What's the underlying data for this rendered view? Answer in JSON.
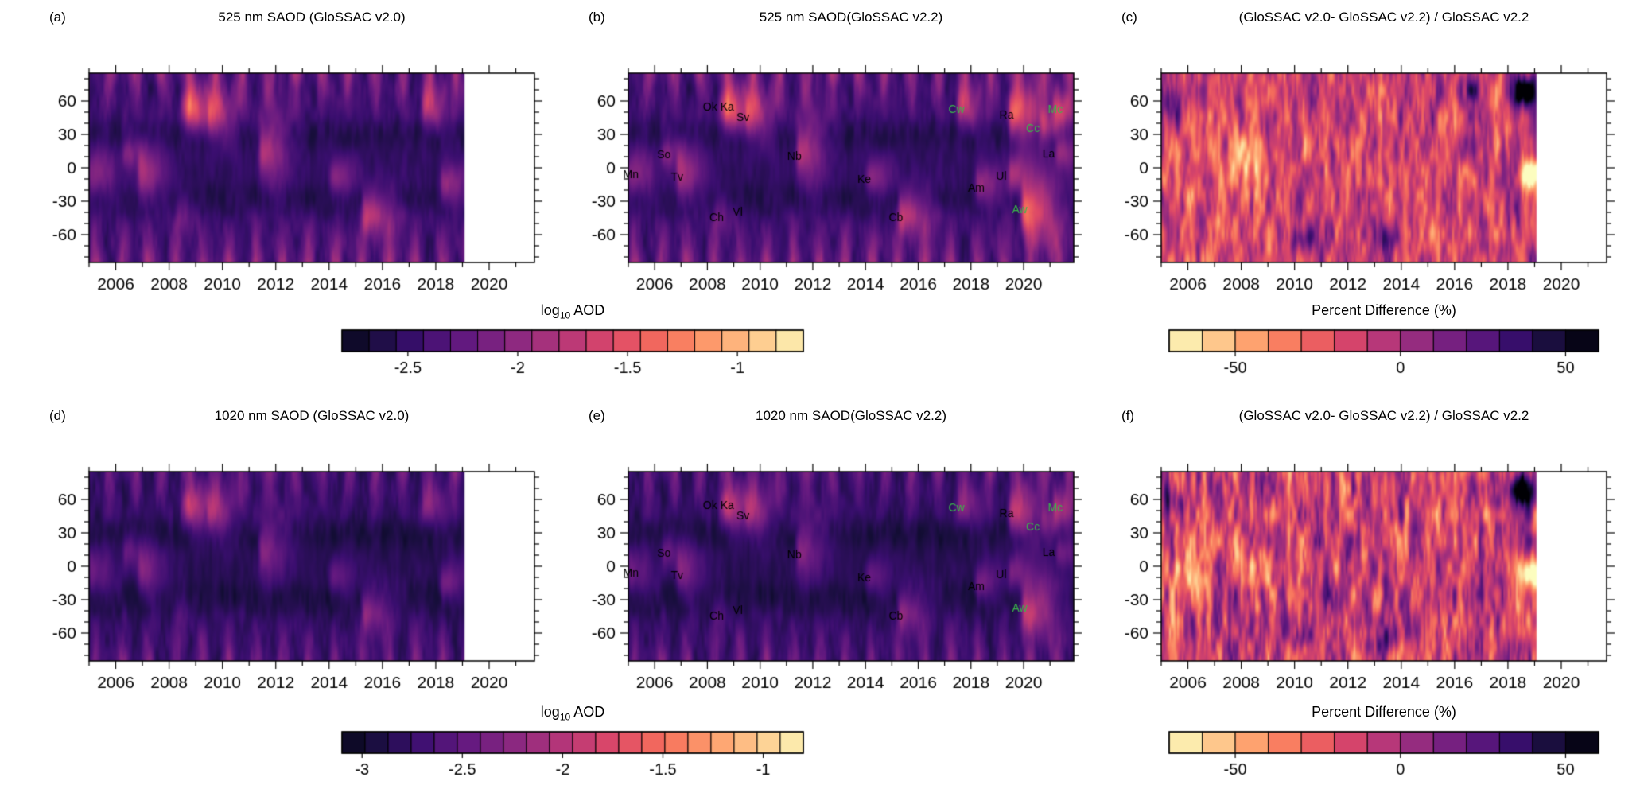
{
  "figure": {
    "background": "#ffffff",
    "text_color": "#000000",
    "accent_green": "#3bb54a"
  },
  "chart_data": {
    "type": "heatmap",
    "x_ticks": [
      2006,
      2008,
      2010,
      2012,
      2014,
      2016,
      2018,
      2020
    ],
    "x_minor_step": 1,
    "y_ticks": [
      60,
      30,
      0,
      -30,
      -60
    ],
    "y_minor_step": 10,
    "lat_range": [
      -85,
      85
    ],
    "panels": [
      {
        "id": "a",
        "letter": "(a)",
        "title": "525 nm SAOD (GloSSAC v2.0)",
        "kind": "aod",
        "x_range": [
          2005,
          2021.7
        ],
        "data_end": 2019.05,
        "value_range": [
          -2.8,
          -0.7
        ],
        "base": -2.45,
        "polar_amp": 0.55,
        "plume_scale": 1.0,
        "events": "common",
        "show_labels": false,
        "seed": 3
      },
      {
        "id": "b",
        "letter": "(b)",
        "title": "525 nm SAOD(GloSSAC v2.2)",
        "kind": "aod",
        "x_range": [
          2005,
          2021.9
        ],
        "data_end": 2021.9,
        "value_range": [
          -2.8,
          -0.7
        ],
        "base": -2.45,
        "polar_amp": 0.55,
        "plume_scale": 1.0,
        "events": "all",
        "show_labels": true,
        "seed": 3
      },
      {
        "id": "c",
        "letter": "(c)",
        "title": "(GloSSAC v2.0- GloSSAC v2.2) / GloSSAC v2.2",
        "kind": "pct",
        "x_range": [
          2005,
          2021.7
        ],
        "data_end": 2019.05,
        "value_range": [
          -70,
          60
        ],
        "base": -12,
        "noise_mul": 1.0,
        "seed": 21
      },
      {
        "id": "d",
        "letter": "(d)",
        "title": "1020 nm SAOD (GloSSAC v2.0)",
        "kind": "aod",
        "x_range": [
          2005,
          2021.7
        ],
        "data_end": 2019.05,
        "value_range": [
          -3.1,
          -0.8
        ],
        "base": -2.78,
        "polar_amp": 0.45,
        "plume_scale": 0.8,
        "events": "common",
        "show_labels": false,
        "seed": 11
      },
      {
        "id": "e",
        "letter": "(e)",
        "title": "1020 nm SAOD(GloSSAC v2.2)",
        "kind": "aod",
        "x_range": [
          2005,
          2021.9
        ],
        "data_end": 2021.9,
        "value_range": [
          -3.1,
          -0.8
        ],
        "base": -2.78,
        "polar_amp": 0.45,
        "plume_scale": 0.8,
        "events": "all",
        "show_labels": true,
        "seed": 11
      },
      {
        "id": "f",
        "letter": "(f)",
        "title": "(GloSSAC v2.0- GloSSAC v2.2) / GloSSAC v2.2",
        "kind": "pct",
        "x_range": [
          2005,
          2021.7
        ],
        "data_end": 2019.05,
        "value_range": [
          -70,
          60
        ],
        "base": -12,
        "noise_mul": 1.2,
        "seed": 77
      }
    ],
    "eruption_markers": [
      {
        "label": "Mn",
        "year": 2005.1,
        "lat": -6,
        "color": "black"
      },
      {
        "label": "So",
        "year": 2006.35,
        "lat": 12,
        "color": "black"
      },
      {
        "label": "Tv",
        "year": 2006.85,
        "lat": -8,
        "color": "black"
      },
      {
        "label": "Ok",
        "year": 2008.1,
        "lat": 55,
        "color": "black"
      },
      {
        "label": "Ka",
        "year": 2008.75,
        "lat": 55,
        "color": "black"
      },
      {
        "label": "Sv",
        "year": 2009.35,
        "lat": 46,
        "color": "black"
      },
      {
        "label": "Ch",
        "year": 2008.35,
        "lat": -44,
        "color": "black"
      },
      {
        "label": "Vl",
        "year": 2009.15,
        "lat": -39,
        "color": "black"
      },
      {
        "label": "Nb",
        "year": 2011.3,
        "lat": 11,
        "color": "black"
      },
      {
        "label": "Ke",
        "year": 2013.95,
        "lat": -10,
        "color": "black"
      },
      {
        "label": "Cb",
        "year": 2015.15,
        "lat": -44,
        "color": "black"
      },
      {
        "label": "Am",
        "year": 2018.2,
        "lat": -18,
        "color": "black"
      },
      {
        "label": "Ul",
        "year": 2019.15,
        "lat": -7,
        "color": "black"
      },
      {
        "label": "Ra",
        "year": 2019.35,
        "lat": 48,
        "color": "black"
      },
      {
        "label": "Cw",
        "year": 2017.45,
        "lat": 53,
        "color": "green"
      },
      {
        "label": "Cc",
        "year": 2020.35,
        "lat": 36,
        "color": "green"
      },
      {
        "label": "Mc",
        "year": 2021.2,
        "lat": 53,
        "color": "green"
      },
      {
        "label": "La",
        "year": 2020.95,
        "lat": 13,
        "color": "black"
      },
      {
        "label": "Aw",
        "year": 2019.85,
        "lat": -37,
        "color": "green"
      }
    ],
    "volcanic_plumes": {
      "common": [
        {
          "label": "Mn",
          "t": 2005.1,
          "lat": -4,
          "amp": 0.5,
          "slat": 14,
          "decay": 0.9
        },
        {
          "label": "So",
          "t": 2006.4,
          "lat": 14,
          "amp": 0.45,
          "slat": 10,
          "decay": 0.7
        },
        {
          "label": "Tv",
          "t": 2006.95,
          "lat": -5,
          "amp": 0.6,
          "slat": 15,
          "decay": 0.9
        },
        {
          "label": "Ok",
          "t": 2008.55,
          "lat": 53,
          "amp": 0.5,
          "slat": 12,
          "decay": 0.8
        },
        {
          "label": "Ka",
          "t": 2008.75,
          "lat": 53,
          "amp": 0.55,
          "slat": 13,
          "decay": 0.9
        },
        {
          "label": "Sv",
          "t": 2009.55,
          "lat": 48,
          "amp": 0.65,
          "slat": 13,
          "decay": 0.9
        },
        {
          "label": "Ch",
          "t": 2008.4,
          "lat": -43,
          "amp": 0.3,
          "slat": 10,
          "decay": 0.6
        },
        {
          "label": "Nb",
          "t": 2011.5,
          "lat": 16,
          "amp": 0.75,
          "slat": 18,
          "decay": 0.9
        },
        {
          "label": "Ke",
          "t": 2014.15,
          "lat": -8,
          "amp": 0.5,
          "slat": 11,
          "decay": 0.8
        },
        {
          "label": "Cb",
          "t": 2015.35,
          "lat": -41,
          "amp": 0.7,
          "slat": 13,
          "decay": 1.1
        },
        {
          "label": "Cw",
          "t": 2017.6,
          "lat": 55,
          "amp": 0.6,
          "slat": 12,
          "decay": 0.8
        },
        {
          "label": "Am",
          "t": 2018.3,
          "lat": -15,
          "amp": 0.55,
          "slat": 11,
          "decay": 0.9
        }
      ],
      "v22_only": [
        {
          "label": "Ra",
          "t": 2019.55,
          "lat": 49,
          "amp": 1.0,
          "slat": 15,
          "decay": 1.1
        },
        {
          "label": "Ul",
          "t": 2019.55,
          "lat": -5,
          "amp": 0.6,
          "slat": 11,
          "decay": 0.9
        },
        {
          "label": "Aw",
          "t": 2020.05,
          "lat": -38,
          "amp": 1.15,
          "slat": 15,
          "decay": 1.2
        },
        {
          "label": "Cc",
          "t": 2020.75,
          "lat": 38,
          "amp": 0.5,
          "slat": 9,
          "decay": 0.7
        },
        {
          "label": "Mc",
          "t": 2021.25,
          "lat": 53,
          "amp": 0.7,
          "slat": 11,
          "decay": 0.8
        },
        {
          "label": "La",
          "t": 2021.35,
          "lat": 13,
          "amp": 0.5,
          "slat": 9,
          "decay": 0.8
        }
      ]
    },
    "pct_features": [
      {
        "t": 2018.55,
        "lat": 68,
        "amp": 95,
        "st": 0.4,
        "slat": 10
      },
      {
        "t": 2018.9,
        "lat": -6,
        "amp": -85,
        "st": 0.3,
        "slat": 9
      },
      {
        "t": 2005.4,
        "lat": 58,
        "amp": 40,
        "st": 0.3,
        "slat": 10
      },
      {
        "t": 2006.1,
        "lat": -15,
        "amp": -30,
        "st": 0.5,
        "slat": 15
      },
      {
        "t": 2010.3,
        "lat": -66,
        "amp": 38,
        "st": 0.3,
        "slat": 8
      },
      {
        "t": 2013.6,
        "lat": -64,
        "amp": 35,
        "st": 0.3,
        "slat": 8
      },
      {
        "t": 2016.5,
        "lat": 70,
        "amp": 30,
        "st": 0.4,
        "slat": 8
      },
      {
        "t": 2008.2,
        "lat": 5,
        "amp": -28,
        "st": 0.6,
        "slat": 16
      }
    ],
    "colorbars": [
      {
        "id": "cb1",
        "kind": "aod",
        "title_prefix": "log",
        "title_sub": "10",
        "title_suffix": " AOD",
        "range": [
          -2.8,
          -0.7
        ],
        "ticks": [
          -2.5,
          -2,
          -1.5,
          -1
        ],
        "segments": 17
      },
      {
        "id": "cb2",
        "kind": "pct",
        "title": "Percent Difference (%)",
        "range": [
          -70,
          60
        ],
        "ticks": [
          -50,
          0,
          50
        ],
        "segments": 13
      },
      {
        "id": "cb3",
        "kind": "aod",
        "title_prefix": "log",
        "title_sub": "10",
        "title_suffix": " AOD",
        "range": [
          -3.1,
          -0.8
        ],
        "ticks": [
          -3,
          -2.5,
          -2,
          -1.5,
          -1
        ],
        "segments": 20
      },
      {
        "id": "cb4",
        "kind": "pct",
        "title": "Percent Difference (%)",
        "range": [
          -70,
          60
        ],
        "ticks": [
          -50,
          0,
          50
        ],
        "segments": 13
      }
    ]
  }
}
